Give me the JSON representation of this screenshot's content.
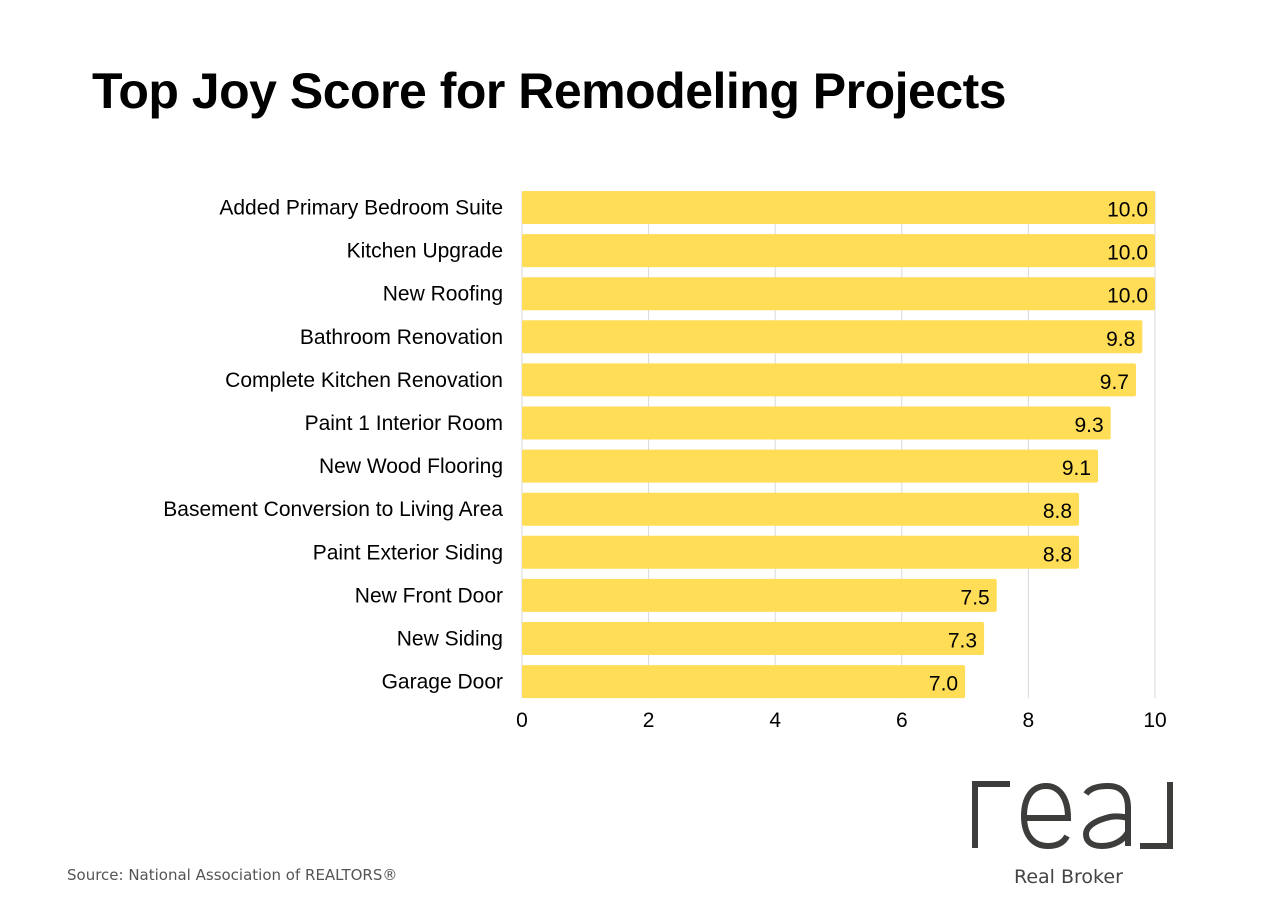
{
  "chart_data": {
    "type": "bar",
    "orientation": "horizontal",
    "title": "Top Joy Score for Remodeling Projects",
    "categories": [
      "Added Primary Bedroom Suite",
      "Kitchen Upgrade",
      "New Roofing",
      "Bathroom Renovation",
      "Complete Kitchen Renovation",
      "Paint 1 Interior Room",
      "New Wood Flooring",
      "Basement Conversion to Living Area",
      "Paint Exterior Siding",
      "New Front Door",
      "New Siding",
      "Garage Door"
    ],
    "values": [
      10.0,
      10.0,
      10.0,
      9.8,
      9.7,
      9.3,
      9.1,
      8.8,
      8.8,
      7.5,
      7.3,
      7.0
    ],
    "data_labels": [
      "10.0",
      "10.0",
      "10.0",
      "9.8",
      "9.7",
      "9.3",
      "9.1",
      "8.8",
      "8.8",
      "7.5",
      "7.3",
      "7.0"
    ],
    "xlabel": "",
    "ylabel": "",
    "xlim": [
      0,
      10
    ],
    "xticks": [
      0,
      2,
      4,
      6,
      8,
      10
    ],
    "grid": true,
    "bar_color": "#FFDD57"
  },
  "footer": {
    "source": "Source: National Association of REALTORS®",
    "brand": "Real Broker",
    "logo_text": "real"
  }
}
